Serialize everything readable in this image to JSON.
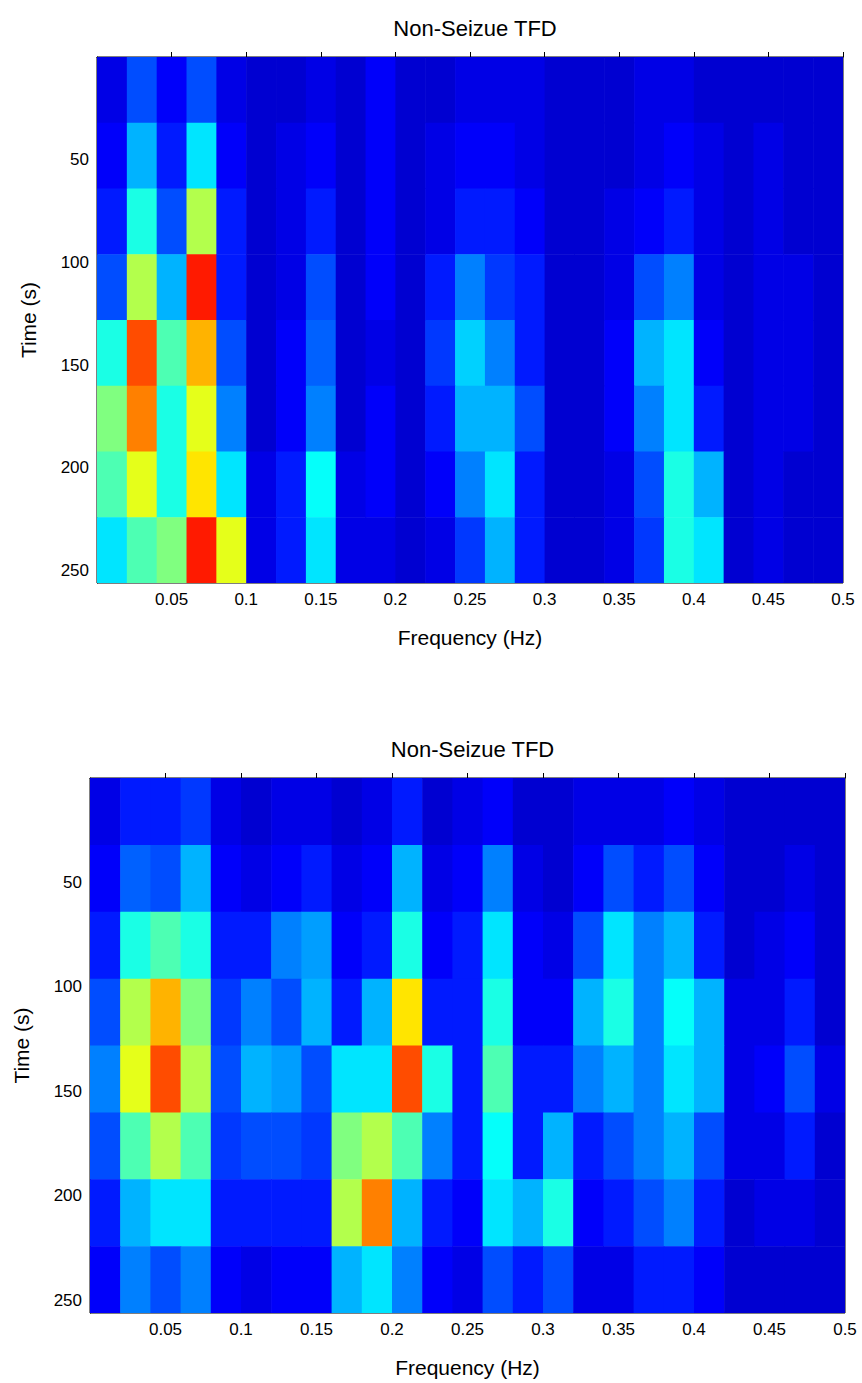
{
  "chart_data": [
    {
      "type": "heatmap",
      "title": "Non-Seizue TFD",
      "x_label": "Frequency (Hz)",
      "y_label": "Time (s)",
      "xlim": [
        0,
        0.5
      ],
      "ylim": [
        0,
        256
      ],
      "xticks": [
        0.05,
        0.1,
        0.15,
        0.2,
        0.25,
        0.3,
        0.35,
        0.4,
        0.45,
        0.5
      ],
      "yticks": [
        50,
        100,
        150,
        200,
        250
      ],
      "frequency_bins": [
        0,
        0.02,
        0.04,
        0.06,
        0.08,
        0.1,
        0.12,
        0.14,
        0.16,
        0.18,
        0.2,
        0.22,
        0.24,
        0.26,
        0.28,
        0.3,
        0.32,
        0.34,
        0.36,
        0.38,
        0.4,
        0.42,
        0.44,
        0.46,
        0.48,
        0.5
      ],
      "time_bins": [
        0,
        32,
        64,
        96,
        128,
        160,
        192,
        224,
        256
      ],
      "color_range": [
        0,
        1
      ],
      "cells": [
        [
          0.1,
          0.2,
          0.12,
          0.2,
          0.1,
          0.08,
          0.08,
          0.1,
          0.08,
          0.12,
          0.08,
          0.08,
          0.1,
          0.1,
          0.1,
          0.08,
          0.08,
          0.08,
          0.1,
          0.1,
          0.08,
          0.08,
          0.08,
          0.08,
          0.08
        ],
        [
          0.12,
          0.3,
          0.15,
          0.35,
          0.12,
          0.08,
          0.1,
          0.12,
          0.08,
          0.12,
          0.08,
          0.1,
          0.12,
          0.12,
          0.1,
          0.08,
          0.08,
          0.08,
          0.1,
          0.12,
          0.1,
          0.08,
          0.1,
          0.08,
          0.08
        ],
        [
          0.15,
          0.4,
          0.2,
          0.55,
          0.15,
          0.08,
          0.1,
          0.15,
          0.08,
          0.12,
          0.08,
          0.1,
          0.15,
          0.15,
          0.12,
          0.08,
          0.08,
          0.1,
          0.12,
          0.15,
          0.1,
          0.08,
          0.1,
          0.08,
          0.08
        ],
        [
          0.2,
          0.55,
          0.3,
          0.85,
          0.15,
          0.08,
          0.1,
          0.2,
          0.08,
          0.12,
          0.08,
          0.15,
          0.25,
          0.18,
          0.15,
          0.08,
          0.08,
          0.1,
          0.2,
          0.25,
          0.1,
          0.08,
          0.1,
          0.1,
          0.08
        ],
        [
          0.4,
          0.8,
          0.45,
          0.7,
          0.2,
          0.08,
          0.12,
          0.22,
          0.08,
          0.1,
          0.08,
          0.18,
          0.33,
          0.25,
          0.15,
          0.08,
          0.08,
          0.12,
          0.3,
          0.35,
          0.12,
          0.08,
          0.1,
          0.1,
          0.08
        ],
        [
          0.5,
          0.75,
          0.4,
          0.6,
          0.25,
          0.08,
          0.12,
          0.25,
          0.08,
          0.12,
          0.08,
          0.15,
          0.3,
          0.3,
          0.2,
          0.08,
          0.08,
          0.12,
          0.25,
          0.35,
          0.15,
          0.08,
          0.1,
          0.1,
          0.08
        ],
        [
          0.45,
          0.6,
          0.4,
          0.65,
          0.35,
          0.1,
          0.15,
          0.38,
          0.1,
          0.12,
          0.08,
          0.12,
          0.25,
          0.35,
          0.15,
          0.08,
          0.08,
          0.1,
          0.2,
          0.4,
          0.3,
          0.08,
          0.1,
          0.08,
          0.08
        ],
        [
          0.35,
          0.45,
          0.5,
          0.85,
          0.6,
          0.1,
          0.15,
          0.35,
          0.1,
          0.1,
          0.08,
          0.1,
          0.18,
          0.3,
          0.15,
          0.08,
          0.08,
          0.1,
          0.18,
          0.4,
          0.35,
          0.08,
          0.1,
          0.08,
          0.08
        ]
      ]
    },
    {
      "type": "heatmap",
      "title": "Non-Seizue TFD",
      "x_label": "Frequency (Hz)",
      "y_label": "Time (s)",
      "xlim": [
        0,
        0.5
      ],
      "ylim": [
        0,
        256
      ],
      "xticks": [
        0.05,
        0.1,
        0.15,
        0.2,
        0.25,
        0.3,
        0.35,
        0.4,
        0.45,
        0.5
      ],
      "yticks": [
        50,
        100,
        150,
        200,
        250
      ],
      "frequency_bins": [
        0,
        0.02,
        0.04,
        0.06,
        0.08,
        0.1,
        0.12,
        0.14,
        0.16,
        0.18,
        0.2,
        0.22,
        0.24,
        0.26,
        0.28,
        0.3,
        0.32,
        0.34,
        0.36,
        0.38,
        0.4,
        0.42,
        0.44,
        0.46,
        0.48,
        0.5
      ],
      "time_bins": [
        0,
        32,
        64,
        96,
        128,
        160,
        192,
        224,
        256
      ],
      "color_range": [
        0,
        1
      ],
      "cells": [
        [
          0.1,
          0.15,
          0.15,
          0.18,
          0.1,
          0.08,
          0.1,
          0.1,
          0.08,
          0.1,
          0.15,
          0.08,
          0.1,
          0.12,
          0.08,
          0.08,
          0.1,
          0.1,
          0.1,
          0.12,
          0.1,
          0.08,
          0.08,
          0.08,
          0.08
        ],
        [
          0.12,
          0.22,
          0.2,
          0.3,
          0.12,
          0.1,
          0.12,
          0.15,
          0.1,
          0.12,
          0.3,
          0.1,
          0.12,
          0.25,
          0.1,
          0.08,
          0.12,
          0.2,
          0.15,
          0.2,
          0.12,
          0.08,
          0.08,
          0.1,
          0.08
        ],
        [
          0.15,
          0.4,
          0.45,
          0.4,
          0.15,
          0.15,
          0.25,
          0.28,
          0.12,
          0.15,
          0.4,
          0.12,
          0.15,
          0.35,
          0.12,
          0.1,
          0.2,
          0.35,
          0.25,
          0.3,
          0.15,
          0.08,
          0.1,
          0.12,
          0.08
        ],
        [
          0.2,
          0.55,
          0.7,
          0.5,
          0.18,
          0.25,
          0.2,
          0.3,
          0.15,
          0.3,
          0.65,
          0.15,
          0.15,
          0.4,
          0.12,
          0.12,
          0.3,
          0.4,
          0.25,
          0.38,
          0.3,
          0.1,
          0.1,
          0.15,
          0.08
        ],
        [
          0.25,
          0.6,
          0.8,
          0.55,
          0.2,
          0.3,
          0.28,
          0.2,
          0.35,
          0.35,
          0.8,
          0.4,
          0.15,
          0.45,
          0.15,
          0.15,
          0.25,
          0.3,
          0.25,
          0.35,
          0.3,
          0.1,
          0.12,
          0.2,
          0.1
        ],
        [
          0.2,
          0.45,
          0.55,
          0.45,
          0.18,
          0.2,
          0.2,
          0.18,
          0.5,
          0.55,
          0.45,
          0.25,
          0.15,
          0.38,
          0.15,
          0.3,
          0.15,
          0.2,
          0.25,
          0.3,
          0.2,
          0.1,
          0.1,
          0.15,
          0.08
        ],
        [
          0.15,
          0.3,
          0.35,
          0.35,
          0.15,
          0.15,
          0.15,
          0.15,
          0.55,
          0.75,
          0.3,
          0.15,
          0.12,
          0.35,
          0.3,
          0.4,
          0.12,
          0.15,
          0.2,
          0.25,
          0.15,
          0.08,
          0.1,
          0.1,
          0.08
        ],
        [
          0.12,
          0.25,
          0.2,
          0.25,
          0.12,
          0.1,
          0.12,
          0.12,
          0.3,
          0.35,
          0.25,
          0.12,
          0.1,
          0.2,
          0.15,
          0.2,
          0.1,
          0.1,
          0.15,
          0.15,
          0.12,
          0.08,
          0.08,
          0.08,
          0.08
        ]
      ]
    }
  ]
}
